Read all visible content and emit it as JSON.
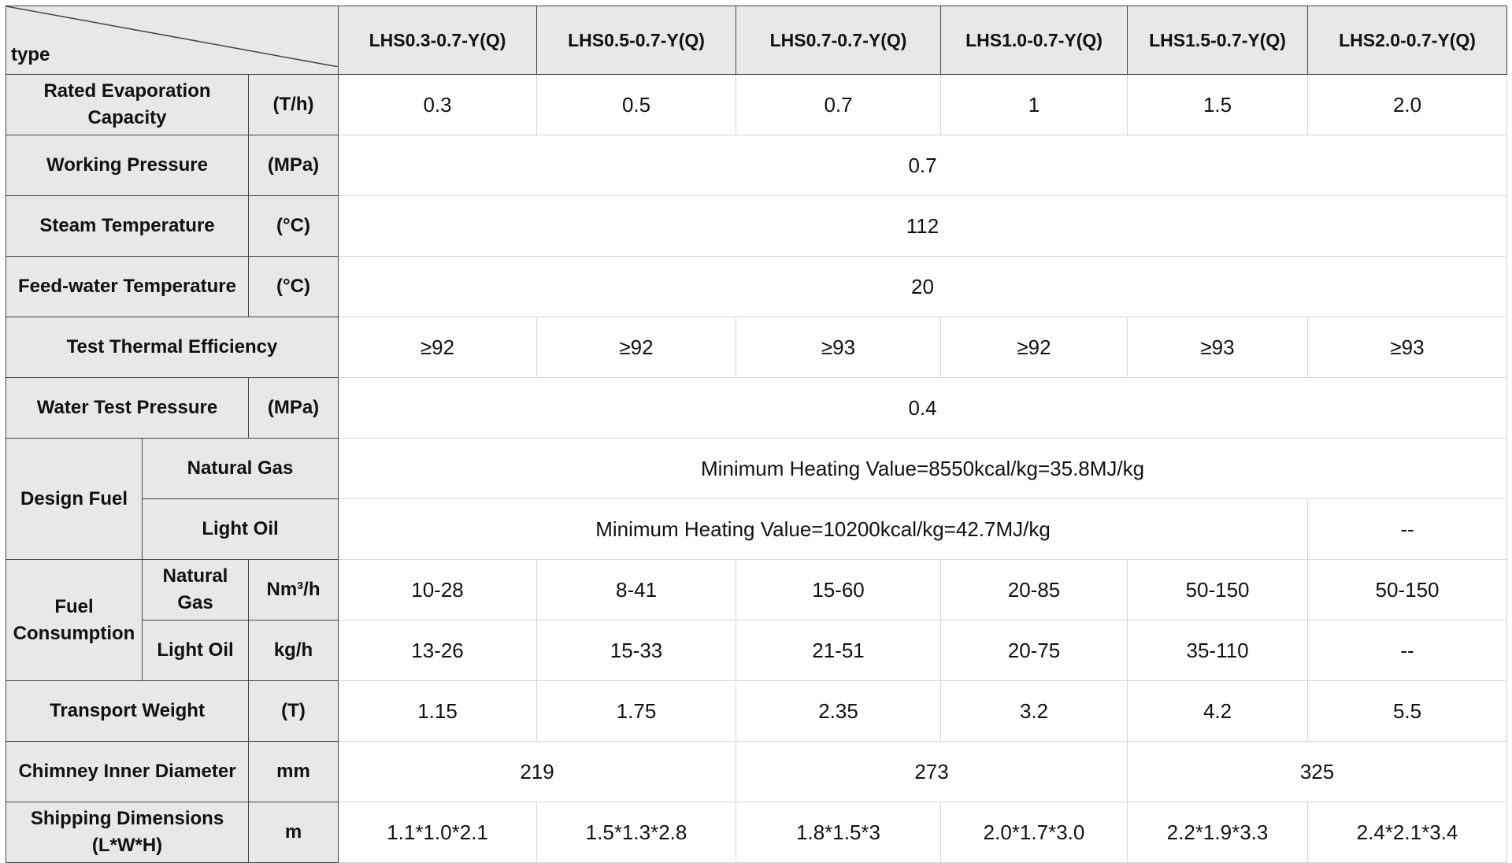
{
  "header": {
    "corner": "type",
    "models": [
      "LHS0.3-0.7-Y(Q)",
      "LHS0.5-0.7-Y(Q)",
      "LHS0.7-0.7-Y(Q)",
      "LHS1.0-0.7-Y(Q)",
      "LHS1.5-0.7-Y(Q)",
      "LHS2.0-0.7-Y(Q)"
    ]
  },
  "rows": [
    {
      "label": "Rated Evaporation Capacity",
      "unit": "(T/h)",
      "values": [
        "0.3",
        "0.5",
        "0.7",
        "1",
        "1.5",
        "2.0"
      ]
    },
    {
      "label": "Working Pressure",
      "unit": "(MPa)",
      "value": "0.7"
    },
    {
      "label": "Steam Temperature",
      "unit": "(°C)",
      "value": "112"
    },
    {
      "label": "Feed-water Temperature",
      "unit": "(°C)",
      "value": "20"
    },
    {
      "label": "Test Thermal Efficiency",
      "values": [
        "≥92",
        "≥92",
        "≥93",
        "≥92",
        "≥93",
        "≥93"
      ]
    },
    {
      "label": "Water Test Pressure",
      "unit": "(MPa)",
      "value": "0.4"
    }
  ],
  "design_fuel": {
    "label": "Design Fuel",
    "rows": [
      {
        "label": "Natural Gas",
        "values": [
          "Minimum Heating Value=8550kcal/kg=35.8MJ/kg"
        ]
      },
      {
        "label": "Light Oil",
        "values": [
          "Minimum Heating Value=10200kcal/kg=42.7MJ/kg",
          "--"
        ]
      }
    ]
  },
  "fuel_consumption": {
    "label": "Fuel Consumption",
    "rows": [
      {
        "label": "Natural Gas",
        "unit": "Nm³/h",
        "values": [
          "10-28",
          "8-41",
          "15-60",
          "20-85",
          "50-150",
          "50-150"
        ]
      },
      {
        "label": "Light Oil",
        "unit": "kg/h",
        "values": [
          "13-26",
          "15-33",
          "21-51",
          "20-75",
          "35-110",
          "--"
        ]
      }
    ]
  },
  "rows_after": [
    {
      "label": "Transport Weight",
      "unit": "(T)",
      "values": [
        "1.15",
        "1.75",
        "2.35",
        "3.2",
        "4.2",
        "5.5"
      ]
    },
    {
      "label": "Chimney Inner Diameter",
      "unit": "mm",
      "values": [
        "219",
        "273",
        "325"
      ]
    },
    {
      "label": "Shipping Dimensions (L*W*H)",
      "unit": "m",
      "values": [
        "1.1*1.0*2.1",
        "1.5*1.3*2.8",
        "1.8*1.5*3",
        "2.0*1.7*3.0",
        "2.2*1.9*3.3",
        "2.4*2.1*3.4"
      ]
    }
  ]
}
